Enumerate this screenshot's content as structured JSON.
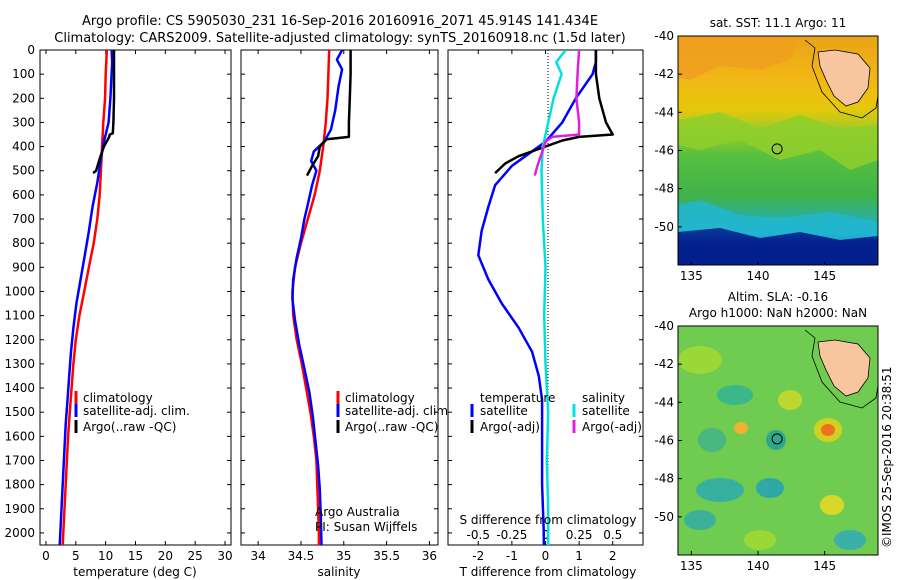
{
  "header": {
    "line1": "Argo profile: CS 5905030_231 16-Sep-2016 20160916_2071 45.914S 141.434E",
    "line2": "Climatology: CARS2009. Satellite-adjusted climatology: synTS_20160918.nc (1.5d later)"
  },
  "side_credit": "©IMOS 25-Sep-2016 20:38:51",
  "chart_data": [
    {
      "id": "temperature",
      "type": "line",
      "xlabel": "temperature (deg C)",
      "ylabel": "",
      "xlim": [
        -1,
        31
      ],
      "ylim": [
        0,
        2050
      ],
      "y_inverted": true,
      "xticks": [
        0,
        5,
        10,
        15,
        20,
        25,
        30
      ],
      "yticks": [
        0,
        100,
        200,
        300,
        400,
        500,
        600,
        700,
        800,
        900,
        1000,
        1100,
        1200,
        1300,
        1400,
        1500,
        1600,
        1700,
        1800,
        1900,
        2000
      ],
      "legend": {
        "placement": "lower-right",
        "entries": [
          "climatology",
          "satellite-adj. clim.",
          "Argo(..raw -QC)"
        ]
      },
      "series": [
        {
          "name": "climatology",
          "color": "#ff0000",
          "points": [
            [
              10.2,
              0
            ],
            [
              10.1,
              50
            ],
            [
              10.0,
              100
            ],
            [
              9.9,
              200
            ],
            [
              9.6,
              300
            ],
            [
              9.4,
              400
            ],
            [
              9.2,
              500
            ],
            [
              9.0,
              600
            ],
            [
              8.6,
              700
            ],
            [
              8.0,
              800
            ],
            [
              7.2,
              900
            ],
            [
              6.4,
              1000
            ],
            [
              5.6,
              1100
            ],
            [
              5.0,
              1200
            ],
            [
              4.6,
              1300
            ],
            [
              4.3,
              1400
            ],
            [
              4.0,
              1500
            ],
            [
              3.7,
              1600
            ],
            [
              3.5,
              1700
            ],
            [
              3.3,
              1800
            ],
            [
              3.1,
              1900
            ],
            [
              2.9,
              2000
            ],
            [
              2.8,
              2050
            ]
          ]
        },
        {
          "name": "satellite-adj. clim.",
          "color": "#0000ff",
          "points": [
            [
              11.0,
              0
            ],
            [
              11.1,
              50
            ],
            [
              11.0,
              100
            ],
            [
              10.8,
              200
            ],
            [
              10.5,
              300
            ],
            [
              9.7,
              380
            ],
            [
              9.2,
              450
            ],
            [
              8.6,
              550
            ],
            [
              7.8,
              650
            ],
            [
              7.2,
              750
            ],
            [
              6.5,
              850
            ],
            [
              5.8,
              950
            ],
            [
              5.1,
              1050
            ],
            [
              4.6,
              1150
            ],
            [
              4.2,
              1250
            ],
            [
              3.9,
              1350
            ],
            [
              3.6,
              1450
            ],
            [
              3.3,
              1550
            ],
            [
              3.1,
              1650
            ],
            [
              2.9,
              1750
            ],
            [
              2.7,
              1850
            ],
            [
              2.5,
              1950
            ],
            [
              2.3,
              2050
            ]
          ]
        },
        {
          "name": "Argo(..raw -QC)",
          "color": "#000000",
          "points": [
            [
              11.4,
              0
            ],
            [
              11.4,
              100
            ],
            [
              11.4,
              200
            ],
            [
              11.3,
              300
            ],
            [
              11.2,
              345
            ],
            [
              10.7,
              350
            ],
            [
              10.6,
              360
            ],
            [
              9.7,
              400
            ],
            [
              9.0,
              450
            ],
            [
              8.4,
              500
            ],
            [
              7.9,
              510
            ]
          ]
        }
      ]
    },
    {
      "id": "salinity",
      "type": "line",
      "xlabel": "salinity",
      "ylabel": "",
      "xlim": [
        33.8,
        36.1
      ],
      "ylim": [
        0,
        2050
      ],
      "y_inverted": true,
      "xticks": [
        34,
        34.5,
        35,
        35.5,
        36
      ],
      "legend": {
        "placement": "lower-right",
        "entries": [
          "climatology",
          "satellite-adj. clim.",
          "Argo(..raw -QC)"
        ]
      },
      "annotations": [
        "Argo Australia",
        "PI: Susan Wijffels"
      ],
      "series": [
        {
          "name": "climatology",
          "color": "#ff0000",
          "points": [
            [
              34.83,
              0
            ],
            [
              34.82,
              100
            ],
            [
              34.81,
              200
            ],
            [
              34.79,
              300
            ],
            [
              34.76,
              400
            ],
            [
              34.72,
              500
            ],
            [
              34.66,
              600
            ],
            [
              34.58,
              700
            ],
            [
              34.5,
              800
            ],
            [
              34.43,
              900
            ],
            [
              34.4,
              1000
            ],
            [
              34.41,
              1100
            ],
            [
              34.45,
              1200
            ],
            [
              34.51,
              1300
            ],
            [
              34.56,
              1400
            ],
            [
              34.61,
              1500
            ],
            [
              34.65,
              1600
            ],
            [
              34.68,
              1700
            ],
            [
              34.69,
              1800
            ],
            [
              34.7,
              1900
            ],
            [
              34.71,
              2000
            ],
            [
              34.71,
              2050
            ]
          ]
        },
        {
          "name": "satellite-adj. clim.",
          "color": "#0000ff",
          "points": [
            [
              34.98,
              0
            ],
            [
              34.92,
              40
            ],
            [
              34.98,
              80
            ],
            [
              34.94,
              150
            ],
            [
              34.9,
              250
            ],
            [
              34.85,
              330
            ],
            [
              34.77,
              380
            ],
            [
              34.65,
              420
            ],
            [
              34.62,
              460
            ],
            [
              34.68,
              500
            ],
            [
              34.63,
              560
            ],
            [
              34.58,
              640
            ],
            [
              34.54,
              700
            ],
            [
              34.5,
              780
            ],
            [
              34.45,
              860
            ],
            [
              34.41,
              950
            ],
            [
              34.4,
              1030
            ],
            [
              34.43,
              1120
            ],
            [
              34.48,
              1220
            ],
            [
              34.54,
              1320
            ],
            [
              34.6,
              1420
            ],
            [
              34.64,
              1520
            ],
            [
              34.67,
              1620
            ],
            [
              34.7,
              1720
            ],
            [
              34.72,
              1820
            ],
            [
              34.73,
              1920
            ],
            [
              34.74,
              2050
            ]
          ]
        },
        {
          "name": "Argo(..raw -QC)",
          "color": "#000000",
          "points": [
            [
              35.08,
              0
            ],
            [
              35.08,
              100
            ],
            [
              35.07,
              200
            ],
            [
              35.06,
              300
            ],
            [
              35.06,
              360
            ],
            [
              34.8,
              370
            ],
            [
              34.72,
              400
            ],
            [
              34.7,
              440
            ],
            [
              34.63,
              480
            ],
            [
              34.57,
              520
            ]
          ]
        }
      ]
    },
    {
      "id": "difference",
      "type": "line",
      "xlabel": "T difference from climatology",
      "x2label": "S difference from climatology",
      "xlim": [
        -2.9,
        2.9
      ],
      "x2lim": [
        -0.725,
        0.725
      ],
      "ylim": [
        0,
        2050
      ],
      "y_inverted": true,
      "xticks": [
        -2,
        -1,
        0,
        1,
        2
      ],
      "x2ticks": [
        -0.5,
        -0.25,
        0,
        0.25,
        0.5
      ],
      "x2ticklabels": [
        "-0.5",
        "-0.25",
        "0",
        "0.25",
        "0.5"
      ],
      "zero_line": true,
      "legend": {
        "placement": "lower",
        "groups": [
          {
            "title": "temperature",
            "entries": [
              "satellite",
              "Argo(-adj)"
            ]
          },
          {
            "title": "salinity",
            "entries": [
              "satellite",
              "Argo(-adj)"
            ]
          }
        ]
      },
      "series": [
        {
          "name": "satellite",
          "group": "temperature",
          "color": "#0000ff",
          "points": [
            [
              1.5,
              0
            ],
            [
              1.5,
              50
            ],
            [
              1.4,
              100
            ],
            [
              0.9,
              200
            ],
            [
              0.5,
              300
            ],
            [
              0.0,
              380
            ],
            [
              -0.5,
              430
            ],
            [
              -1.0,
              480
            ],
            [
              -1.5,
              560
            ],
            [
              -1.7,
              650
            ],
            [
              -1.9,
              750
            ],
            [
              -2.0,
              850
            ],
            [
              -1.7,
              950
            ],
            [
              -1.3,
              1050
            ],
            [
              -0.8,
              1150
            ],
            [
              -0.4,
              1250
            ],
            [
              -0.2,
              1350
            ],
            [
              -0.1,
              1450
            ],
            [
              -0.1,
              1600
            ],
            [
              -0.1,
              1800
            ],
            [
              -0.05,
              2000
            ],
            [
              -0.05,
              2050
            ]
          ]
        },
        {
          "name": "Argo(-adj)",
          "group": "temperature",
          "color": "#000000",
          "points": [
            [
              1.5,
              0
            ],
            [
              1.5,
              100
            ],
            [
              1.6,
              200
            ],
            [
              1.8,
              300
            ],
            [
              2.0,
              350
            ],
            [
              1.0,
              360
            ],
            [
              0.5,
              375
            ],
            [
              0.0,
              400
            ],
            [
              -0.8,
              440
            ],
            [
              -1.2,
              470
            ],
            [
              -1.5,
              510
            ]
          ]
        },
        {
          "name": "satellite",
          "group": "salinity",
          "color": "#00e0e0",
          "points": [
            [
              0.15,
              0
            ],
            [
              0.08,
              50
            ],
            [
              0.12,
              100
            ],
            [
              0.06,
              200
            ],
            [
              0.02,
              300
            ],
            [
              -0.02,
              400
            ],
            [
              -0.03,
              500
            ],
            [
              -0.02,
              700
            ],
            [
              0.0,
              900
            ],
            [
              -0.01,
              1100
            ],
            [
              0.0,
              1300
            ],
            [
              0.02,
              1500
            ],
            [
              0.01,
              1700
            ],
            [
              0.02,
              1900
            ],
            [
              0.02,
              2050
            ]
          ]
        },
        {
          "name": "Argo(-adj)",
          "group": "salinity",
          "color": "#e020e0",
          "points": [
            [
              0.25,
              0
            ],
            [
              0.24,
              80
            ],
            [
              0.23,
              200
            ],
            [
              0.25,
              300
            ],
            [
              0.25,
              350
            ],
            [
              0.05,
              360
            ],
            [
              0.0,
              380
            ],
            [
              -0.03,
              430
            ],
            [
              -0.06,
              480
            ],
            [
              -0.08,
              520
            ]
          ]
        }
      ]
    },
    {
      "id": "sst_map",
      "type": "heatmap",
      "title": "sat. SST: 11.1 Argo: 11",
      "xlim": [
        134,
        149
      ],
      "ylim": [
        -52,
        -40
      ],
      "xticks": [
        135,
        140,
        145
      ],
      "yticks": [
        -40,
        -42,
        -44,
        -46,
        -48,
        -50
      ],
      "marker": {
        "lon": 141.434,
        "lat": -45.914
      }
    },
    {
      "id": "sla_map",
      "type": "heatmap",
      "title": "Altim. SLA: -0.16",
      "subtitle": "Argo h1000: NaN h2000: NaN",
      "xlim": [
        134,
        149
      ],
      "ylim": [
        -52,
        -40
      ],
      "xticks": [
        135,
        140,
        145
      ],
      "yticks": [
        -40,
        -42,
        -44,
        -46,
        -48,
        -50
      ],
      "marker": {
        "lon": 141.434,
        "lat": -45.914
      }
    }
  ]
}
